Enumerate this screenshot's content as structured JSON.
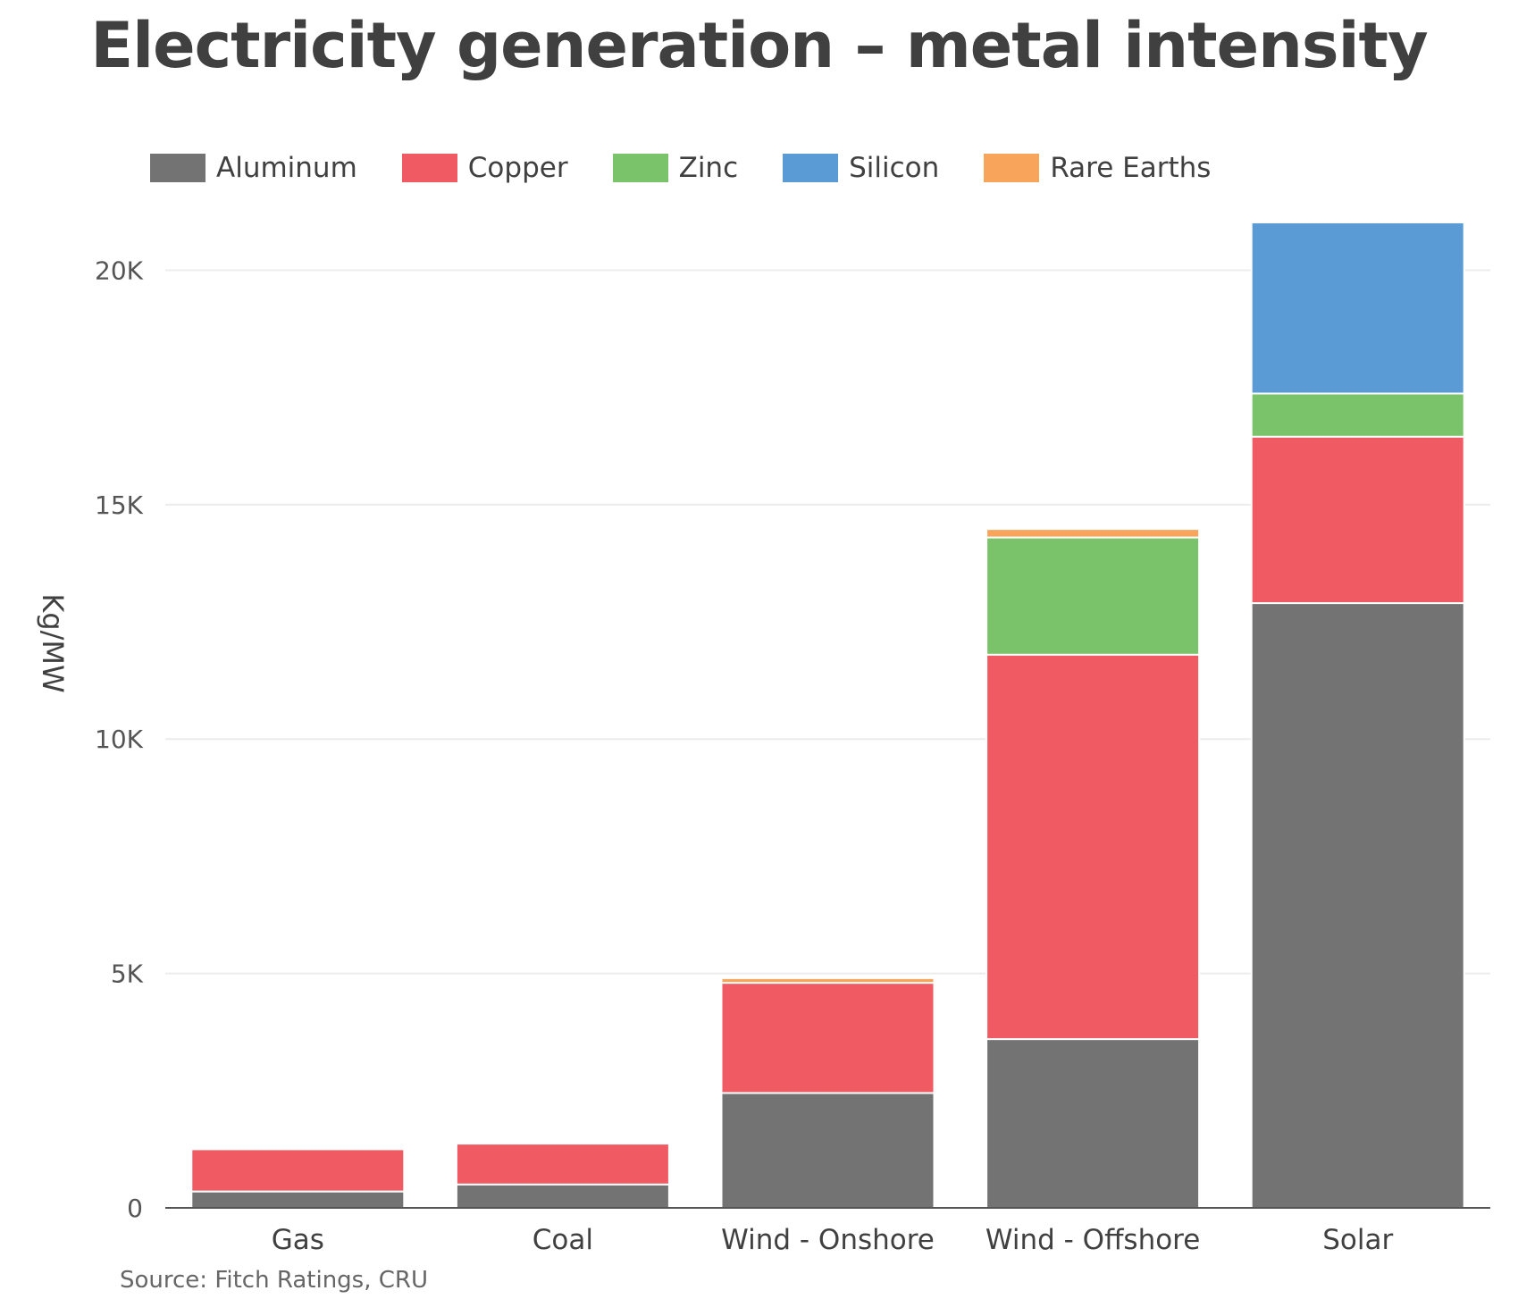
{
  "chart_data": {
    "type": "bar",
    "stacked": true,
    "title": "Electricity generation – metal intensity",
    "ylabel": "Kg/MW",
    "xlabel": "",
    "source": "Source: Fitch Ratings, CRU",
    "categories": [
      "Gas",
      "Coal",
      "Wind - Onshore",
      "Wind - Offshore",
      "Solar"
    ],
    "ylim": [
      0,
      21000
    ],
    "yticks": [
      0,
      5000,
      10000,
      15000,
      20000
    ],
    "ytick_labels": [
      "0",
      "5K",
      "10K",
      "15K",
      "20K"
    ],
    "grid": true,
    "legend_position": "top-left",
    "series": [
      {
        "name": "Aluminum",
        "color": "#737373",
        "values": [
          350,
          500,
          2450,
          3600,
          12900
        ]
      },
      {
        "name": "Copper",
        "color": "#f05a62",
        "values": [
          900,
          870,
          2350,
          8200,
          3550
        ]
      },
      {
        "name": "Zinc",
        "color": "#7ac36a",
        "values": [
          0,
          0,
          0,
          2500,
          920
        ]
      },
      {
        "name": "Silicon",
        "color": "#5b9bd5",
        "values": [
          0,
          0,
          0,
          0,
          3650
        ]
      },
      {
        "name": "Rare Earths",
        "color": "#f8a45a",
        "values": [
          0,
          0,
          100,
          180,
          0
        ]
      }
    ]
  }
}
